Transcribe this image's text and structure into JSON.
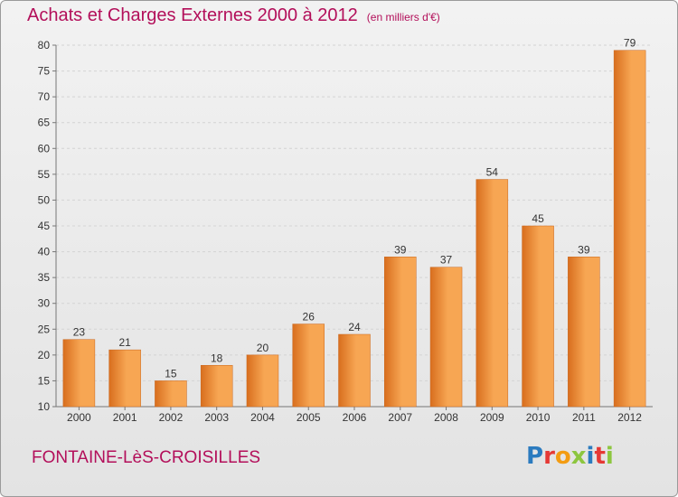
{
  "title": "Achats et Charges Externes 2000 à 2012",
  "unit": "(en milliers d'€)",
  "place": "FONTAINE-LèS-CROISILLES",
  "logo": [
    "P",
    "r",
    "o",
    "x",
    "i",
    "t",
    "i"
  ],
  "logo_colors": [
    "#2b7bbf",
    "#e53935",
    "#f39c12",
    "#8dc63f",
    "#2b7bbf",
    "#e53935",
    "#8dc63f"
  ],
  "colors": {
    "bar_light": "#f7a653",
    "bar_dark": "#d86e1e",
    "title": "#b30f5a"
  },
  "chart_data": {
    "type": "bar",
    "categories": [
      "2000",
      "2001",
      "2002",
      "2003",
      "2004",
      "2005",
      "2006",
      "2007",
      "2008",
      "2009",
      "2010",
      "2011",
      "2012"
    ],
    "values": [
      23,
      21,
      15,
      18,
      20,
      26,
      24,
      39,
      37,
      54,
      45,
      39,
      79
    ],
    "yticks": [
      "10",
      "15",
      "20",
      "25",
      "30",
      "35",
      "40",
      "45",
      "50",
      "55",
      "60",
      "65",
      "70",
      "75",
      "80"
    ],
    "ylim": [
      10,
      80
    ],
    "grid": true,
    "xlabel": "",
    "ylabel": ""
  }
}
